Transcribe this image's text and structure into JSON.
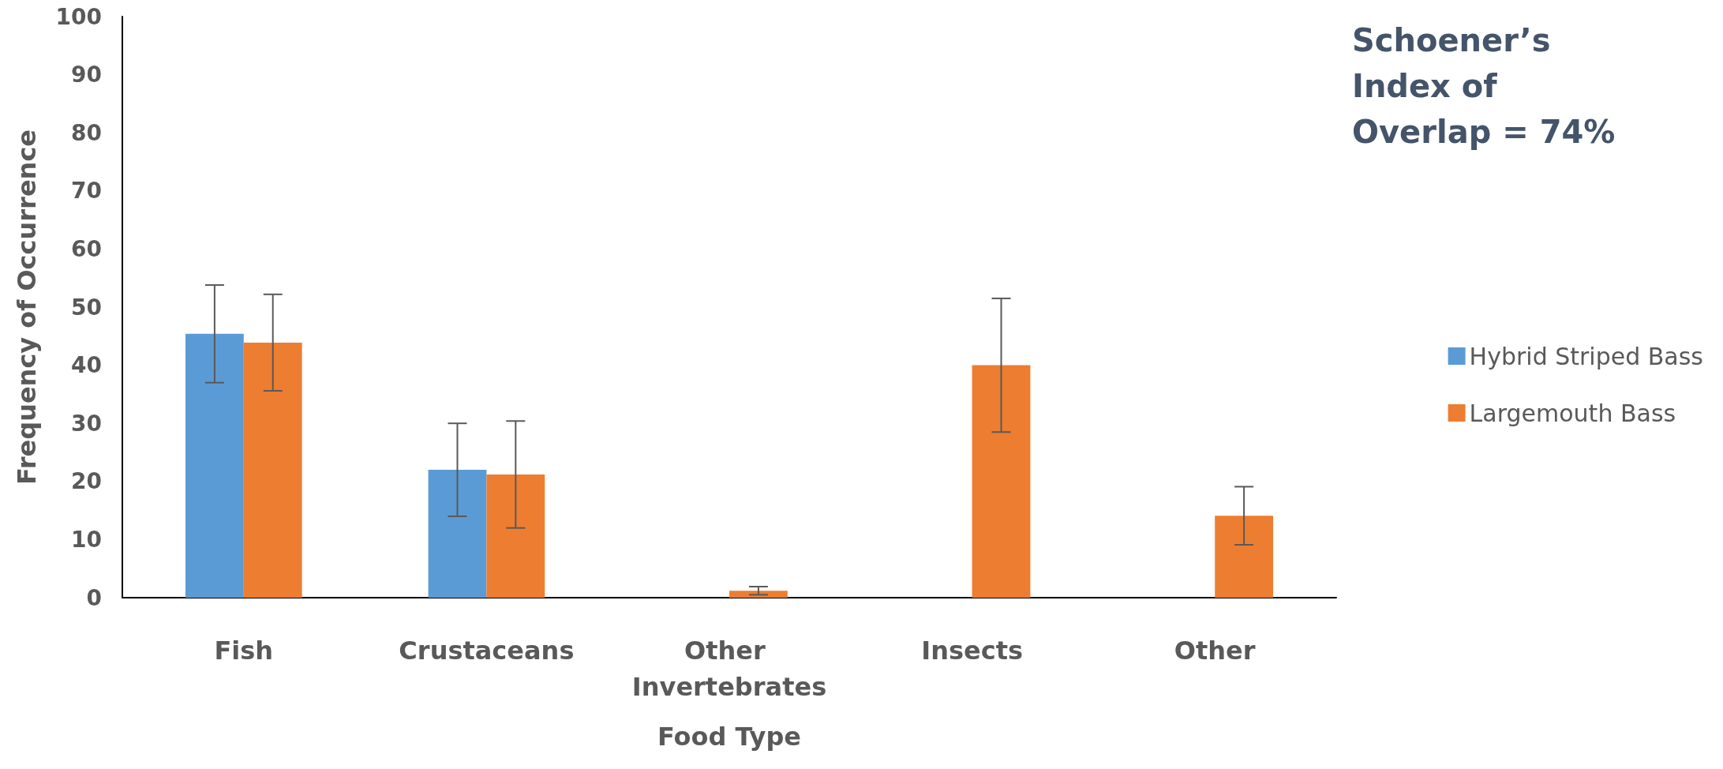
{
  "chart_data": {
    "type": "bar",
    "xlabel": "Food Type",
    "ylabel": "Frequency of Occurrence",
    "categories": [
      "Fish",
      "Crustaceans",
      "Other Invertebrates",
      "Insects",
      "Other"
    ],
    "series": [
      {
        "name": "Hybrid Striped Bass",
        "color": "#5b9bd5",
        "values": [
          45.4,
          22.0,
          null,
          null,
          null
        ],
        "errors": [
          8.4,
          8.0,
          null,
          null,
          null
        ]
      },
      {
        "name": "Largemouth Bass",
        "color": "#ed7d31",
        "values": [
          43.9,
          21.2,
          1.2,
          40.0,
          14.1
        ],
        "errors": [
          8.3,
          9.2,
          0.7,
          11.5,
          5.0
        ]
      }
    ],
    "ylim": [
      0,
      100
    ],
    "yticks": [
      0,
      10,
      20,
      30,
      40,
      50,
      60,
      70,
      80,
      90,
      100
    ],
    "grid": false,
    "legend": "right",
    "annotations": [
      "Schoener’s Index of Overlap = 74%"
    ]
  }
}
